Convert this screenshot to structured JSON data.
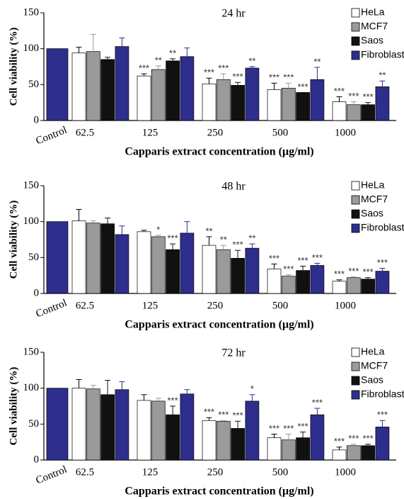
{
  "chart_data": [
    {
      "type": "bar",
      "title": "24 hr",
      "xlabel": "Capparis extract concentration (μg/ml)",
      "ylabel": "Cell viability (%)",
      "categories": [
        "Control",
        "62.5",
        "125",
        "250",
        "500",
        "1000"
      ],
      "ylim": [
        0,
        150
      ],
      "yticks": [
        0,
        50,
        100,
        150
      ],
      "legend": "upper right",
      "series": [
        {
          "name": "HeLa",
          "color": "#ffffff",
          "values": [
            null,
            94,
            62,
            51,
            43,
            26
          ],
          "errors": [
            null,
            8,
            3,
            8,
            9,
            7
          ],
          "annotations": [
            null,
            null,
            "***",
            "***",
            "***",
            "***"
          ]
        },
        {
          "name": "MCF7",
          "color": "#9a9a9a",
          "values": [
            null,
            96,
            71,
            57,
            45,
            22
          ],
          "errors": [
            null,
            24,
            5,
            8,
            7,
            4
          ],
          "annotations": [
            null,
            null,
            "**",
            "***",
            "***",
            "***"
          ]
        },
        {
          "name": "Saos",
          "color": "#111111",
          "values": [
            null,
            85,
            83,
            49,
            39,
            22
          ],
          "errors": [
            null,
            3,
            3,
            4,
            0,
            3
          ],
          "annotations": [
            null,
            null,
            "**",
            "***",
            "***",
            "***"
          ]
        },
        {
          "name": "Fibroblast",
          "color": "#2e2e8c",
          "values": [
            100,
            103,
            89,
            73,
            57,
            47
          ],
          "errors": [
            null,
            12,
            12,
            2,
            17,
            8
          ],
          "annotations": [
            null,
            null,
            null,
            "**",
            "**",
            "**"
          ]
        }
      ]
    },
    {
      "type": "bar",
      "title": "48 hr",
      "xlabel": "Capparis extract concentration (μg/ml)",
      "ylabel": "Cell viability (%)",
      "categories": [
        "Control",
        "62.5",
        "125",
        "250",
        "500",
        "1000"
      ],
      "ylim": [
        0,
        150
      ],
      "yticks": [
        0,
        50,
        100,
        150
      ],
      "legend": "upper right",
      "series": [
        {
          "name": "HeLa",
          "color": "#ffffff",
          "values": [
            null,
            101,
            86,
            67,
            34,
            17
          ],
          "errors": [
            null,
            16,
            2,
            12,
            7,
            2
          ],
          "annotations": [
            null,
            null,
            null,
            "**",
            "***",
            "***"
          ]
        },
        {
          "name": "MCF7",
          "color": "#9a9a9a",
          "values": [
            null,
            98,
            79,
            61,
            24,
            22
          ],
          "errors": [
            null,
            3,
            2,
            6,
            2,
            1
          ],
          "annotations": [
            null,
            null,
            "*",
            "**",
            "***",
            "***"
          ]
        },
        {
          "name": "Saos",
          "color": "#111111",
          "values": [
            null,
            97,
            61,
            49,
            32,
            20
          ],
          "errors": [
            null,
            8,
            8,
            11,
            6,
            2
          ],
          "annotations": [
            null,
            null,
            "***",
            "***",
            "***",
            "***"
          ]
        },
        {
          "name": "Fibroblast",
          "color": "#2e2e8c",
          "values": [
            100,
            82,
            84,
            63,
            39,
            31
          ],
          "errors": [
            null,
            12,
            16,
            6,
            3,
            4
          ],
          "annotations": [
            null,
            null,
            null,
            "**",
            "***",
            "***"
          ]
        }
      ]
    },
    {
      "type": "bar",
      "title": "72 hr",
      "xlabel": "Capparis extract concentration (μg/ml)",
      "ylabel": "Cell viability (%)",
      "categories": [
        "Control",
        "62.5",
        "125",
        "250",
        "500",
        "1000"
      ],
      "ylim": [
        0,
        150
      ],
      "yticks": [
        0,
        50,
        100,
        150
      ],
      "legend": "upper right",
      "series": [
        {
          "name": "HeLa",
          "color": "#ffffff",
          "values": [
            null,
            100,
            83,
            55,
            31,
            14
          ],
          "errors": [
            null,
            12,
            8,
            4,
            5,
            4
          ],
          "annotations": [
            null,
            null,
            null,
            "***",
            "***",
            "***"
          ]
        },
        {
          "name": "MCF7",
          "color": "#9a9a9a",
          "values": [
            null,
            99,
            82,
            54,
            28,
            20
          ],
          "errors": [
            null,
            5,
            4,
            1,
            8,
            2
          ],
          "annotations": [
            null,
            null,
            null,
            "***",
            "***",
            "***"
          ]
        },
        {
          "name": "Saos",
          "color": "#111111",
          "values": [
            null,
            91,
            63,
            44,
            31,
            20
          ],
          "errors": [
            null,
            20,
            12,
            10,
            8,
            2
          ],
          "annotations": [
            null,
            null,
            "***",
            "***",
            "***",
            "***"
          ]
        },
        {
          "name": "Fibroblast",
          "color": "#2e2e8c",
          "values": [
            100,
            98,
            92,
            82,
            63,
            46
          ],
          "errors": [
            null,
            11,
            6,
            9,
            9,
            9
          ],
          "annotations": [
            null,
            null,
            null,
            "*",
            "***",
            "***"
          ]
        }
      ]
    }
  ]
}
